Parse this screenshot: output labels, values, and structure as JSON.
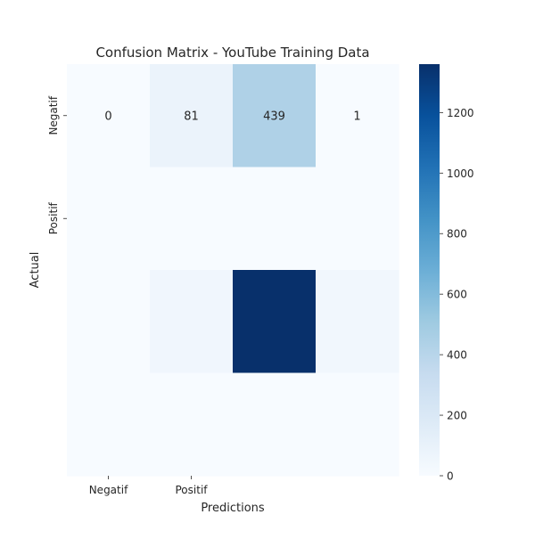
{
  "chart_data": {
    "type": "heatmap",
    "title": "Confusion Matrix - YouTube Training Data",
    "xlabel": "Predictions",
    "ylabel": "Actual",
    "x_tick_labels": [
      "Negatif",
      "Positif"
    ],
    "y_tick_labels": [
      "Negatif",
      "Positif"
    ],
    "n_rows": 4,
    "n_cols": 4,
    "values": [
      [
        0,
        81,
        439,
        1
      ],
      [
        0,
        0,
        0,
        0
      ],
      [
        0,
        50,
        1360,
        40
      ],
      [
        0,
        0,
        0,
        0
      ]
    ],
    "annotations": [
      [
        "0",
        "81",
        "439",
        "1"
      ],
      [
        "",
        "",
        "",
        ""
      ],
      [
        "",
        "",
        "",
        ""
      ],
      [
        "",
        "",
        "",
        ""
      ]
    ],
    "colormap": "Blues",
    "colorbar": {
      "min": 0,
      "max": 1360,
      "ticks": [
        0,
        200,
        400,
        600,
        800,
        1000,
        1200
      ]
    }
  }
}
